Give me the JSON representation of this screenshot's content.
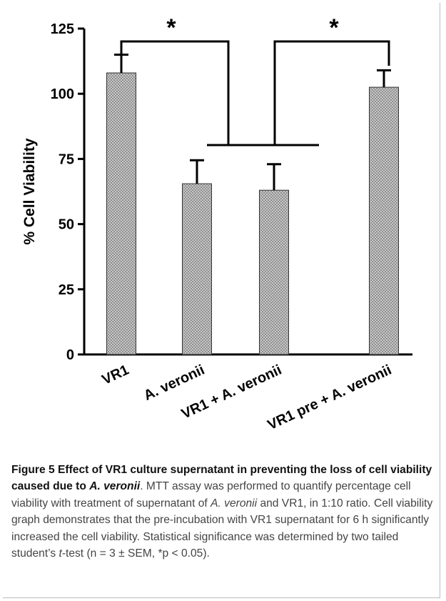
{
  "chart_data": {
    "type": "bar",
    "categories": [
      "VR1",
      "A. veronii",
      "VR1 + A. veronii",
      "VR1 pre + A. veronii"
    ],
    "values": [
      108,
      65.5,
      63,
      102.5
    ],
    "errors": [
      7,
      9,
      10,
      6.5
    ],
    "color": "#8a8a8a",
    "ylabel": "% Cell Viability",
    "ylim": [
      0,
      125
    ],
    "yticks": [
      0,
      25,
      50,
      75,
      100,
      125
    ],
    "annotations": [
      "*",
      "*"
    ]
  },
  "caption": [
    {
      "text": "Figure 5 Effect of VR1 culture supernatant in preventing the loss of cell viability caused due to ",
      "style": "bold"
    },
    {
      "text": "A. veronii",
      "style": "bold-italic"
    },
    {
      "text": ". MTT assay was performed to quantify percentage cell viability with treatment of supernatant of ",
      "style": "normal"
    },
    {
      "text": "A. veronii",
      "style": "italic"
    },
    {
      "text": " and VR1, in 1:10 ratio. Cell viability graph demonstrates that the pre-incubation with VR1 supernatant for 6 h significantly increased the cell viability. Statistical significance was determined by two tailed student’s ",
      "style": "normal"
    },
    {
      "text": "t",
      "style": "italic"
    },
    {
      "text": "-test (n = 3 ± SEM, *p < 0.05).",
      "style": "normal"
    }
  ]
}
